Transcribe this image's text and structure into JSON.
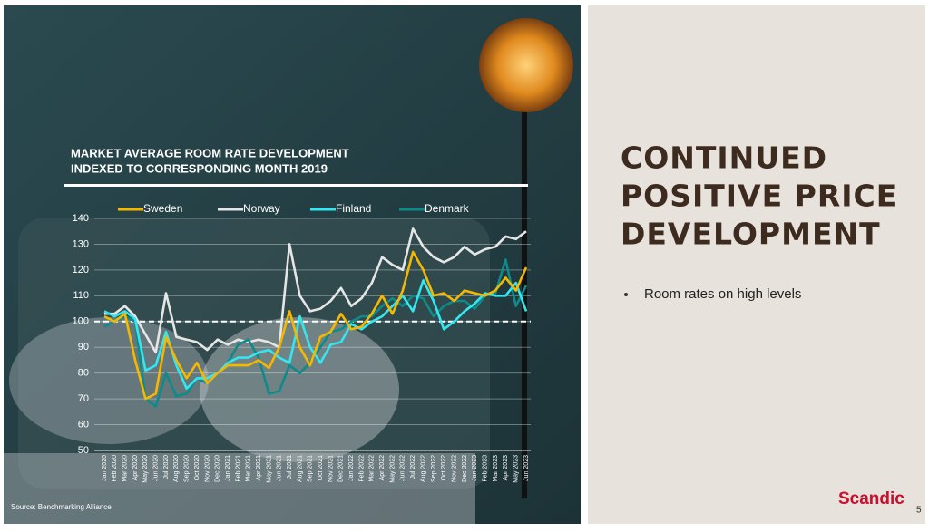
{
  "chart_data": {
    "type": "line",
    "title": [
      "MARKET AVERAGE ROOM RATE DEVELOPMENT",
      "INDEXED TO CORRESPONDING MONTH 2019"
    ],
    "categories": [
      "Jan 2020",
      "Feb 2020",
      "Mar 2020",
      "Apr 2020",
      "May 2020",
      "Jun 2020",
      "Jul 2020",
      "Aug 2020",
      "Sep 2020",
      "Oct 2020",
      "Nov 2020",
      "Dec 2020",
      "Jan 2021",
      "Feb 2021",
      "Mar 2021",
      "Apr 2021",
      "May 2021",
      "Jun 2021",
      "Jul 2021",
      "Aug 2021",
      "Sep 2021",
      "Oct 2021",
      "Nov 2021",
      "Dec 2021",
      "Jan 2022",
      "Feb 2022",
      "Mar 2022",
      "Apr 2022",
      "May 2022",
      "Jun 2022",
      "Jul 2022",
      "Aug 2022",
      "Sep 2022",
      "Oct 2022",
      "Nov 2022",
      "Dec 2022",
      "Jan 2023",
      "Feb 2023",
      "Mar 2023",
      "Apr 2023",
      "May 2023",
      "Jun 2023"
    ],
    "series": [
      {
        "name": "Sweden",
        "color": "#f5b800",
        "values": [
          102,
          100,
          103,
          85,
          70,
          72,
          94,
          85,
          78,
          84,
          76,
          80,
          83,
          83,
          83,
          85,
          82,
          90,
          104,
          90,
          83,
          94,
          96,
          103,
          97,
          98,
          103,
          110,
          103,
          112,
          127,
          120,
          110,
          111,
          108,
          112,
          111,
          110,
          112,
          117,
          112,
          121
        ]
      },
      {
        "name": "Norway",
        "color": "#e6e6e6",
        "values": [
          103,
          103,
          106,
          102,
          95,
          88,
          111,
          94,
          93,
          92,
          89,
          93,
          91,
          93,
          92,
          93,
          92,
          90,
          130,
          110,
          104,
          105,
          108,
          113,
          106,
          109,
          115,
          125,
          122,
          120,
          136,
          129,
          125,
          123,
          125,
          129,
          126,
          128,
          129,
          133,
          132,
          135
        ]
      },
      {
        "name": "Finland",
        "color": "#33e6f0",
        "values": [
          104,
          102,
          104,
          101,
          81,
          83,
          96,
          83,
          74,
          78,
          78,
          80,
          84,
          86,
          86,
          88,
          89,
          86,
          84,
          102,
          90,
          84,
          91,
          92,
          99,
          97,
          100,
          102,
          106,
          110,
          104,
          116,
          108,
          97,
          100,
          104,
          107,
          111,
          110,
          110,
          115,
          104
        ]
      },
      {
        "name": "Denmark",
        "color": "#0e8a8a",
        "values": [
          98,
          100,
          102,
          100,
          70,
          67,
          80,
          71,
          72,
          78,
          76,
          80,
          84,
          91,
          93,
          86,
          72,
          73,
          83,
          80,
          84,
          90,
          96,
          97,
          100,
          102,
          102,
          106,
          109,
          106,
          110,
          109,
          102,
          106,
          108,
          108,
          105,
          110,
          111,
          124,
          106,
          114
        ]
      }
    ],
    "ylim": [
      50,
      140
    ],
    "yticks": [
      50,
      60,
      70,
      80,
      90,
      100,
      110,
      120,
      130,
      140
    ],
    "grid": true,
    "reference_line": 100,
    "source": "Source: Benchmarking Alliance"
  },
  "slide": {
    "heading": [
      "CONTINUED",
      "POSITIVE PRICE",
      "DEVELOPMENT"
    ],
    "bullets": [
      "Room rates on high levels"
    ],
    "logo": "Scandic",
    "page_number": "5"
  }
}
